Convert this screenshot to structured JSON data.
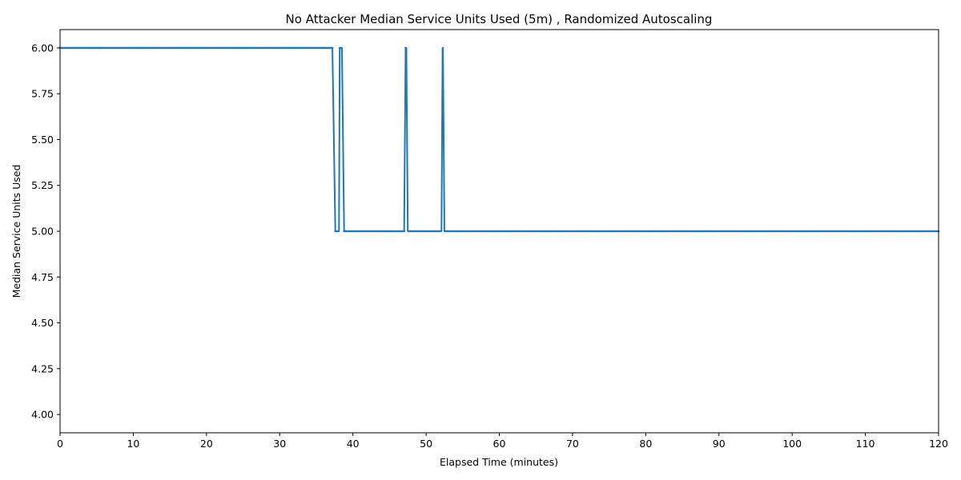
{
  "chart_data": {
    "type": "line",
    "title": "No Attacker Median Service Units Used (5m) , Randomized Autoscaling",
    "xlabel": "Elapsed Time (minutes)",
    "ylabel": "Median Service Units Used",
    "xlim": [
      0,
      120
    ],
    "ylim": [
      3.9,
      6.1
    ],
    "x_ticks": [
      0,
      10,
      20,
      30,
      40,
      50,
      60,
      70,
      80,
      90,
      100,
      110,
      120
    ],
    "x_tick_labels": [
      "0",
      "10",
      "20",
      "30",
      "40",
      "50",
      "60",
      "70",
      "80",
      "90",
      "100",
      "110",
      "120"
    ],
    "y_ticks": [
      4.0,
      4.25,
      4.5,
      4.75,
      5.0,
      5.25,
      5.5,
      5.75,
      6.0
    ],
    "y_tick_labels": [
      "4.00",
      "4.25",
      "4.50",
      "4.75",
      "5.00",
      "5.25",
      "5.50",
      "5.75",
      "6.00"
    ],
    "grid": false,
    "series": [
      {
        "color": "#1f77b4",
        "marker": "dot",
        "x": [
          0,
          37.2,
          37.6,
          38.1,
          38.2,
          38.5,
          38.8,
          47.0,
          47.2,
          47.3,
          47.5,
          52.1,
          52.25,
          52.3,
          52.5,
          120
        ],
        "values": [
          6,
          6,
          5,
          5,
          6,
          6,
          5,
          5,
          6,
          6,
          5,
          5,
          6,
          6,
          5,
          5
        ]
      }
    ]
  }
}
